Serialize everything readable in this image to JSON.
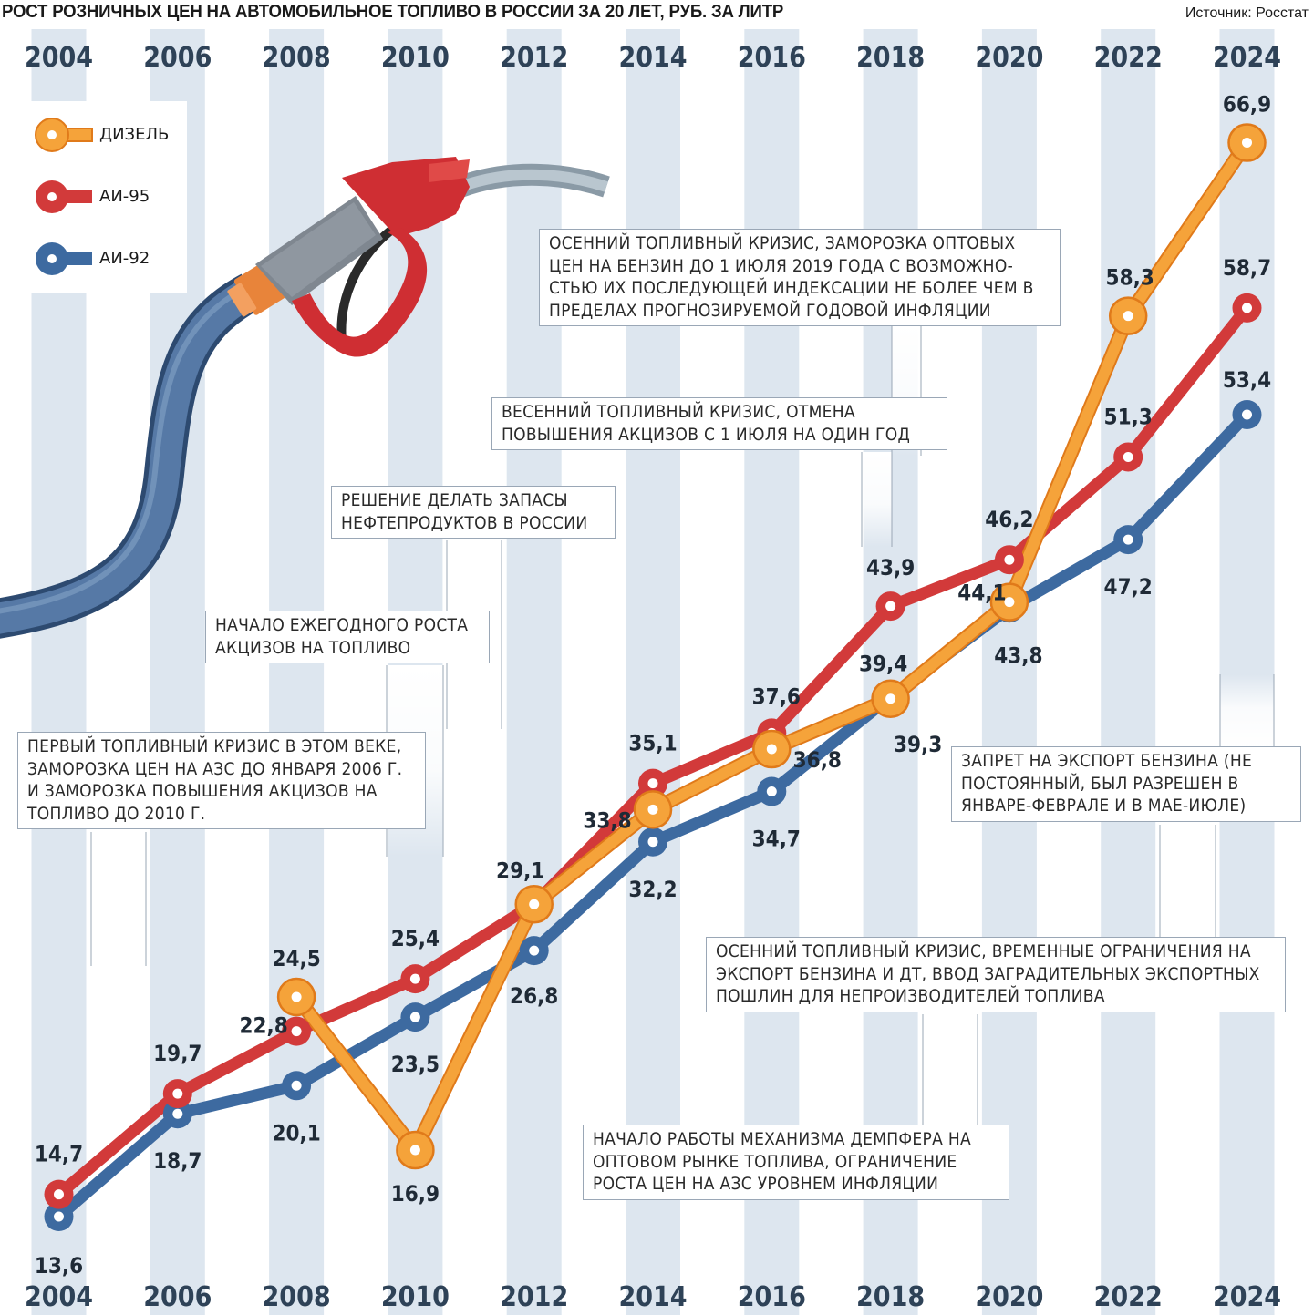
{
  "header": {
    "title": "РОСТ РОЗНИЧНЫХ ЦЕН НА АВТОМОБИЛЬНОЕ ТОПЛИВО В РОССИИ ЗА 20 ЛЕТ, РУБ. ЗА ЛИТР",
    "source": "Источник: Росстат"
  },
  "colors": {
    "diesel": "#f5a33a",
    "ai95": "#d23a3a",
    "ai92": "#3d6aa0",
    "stripe": "#dde6ef",
    "year_label": "#2e4257"
  },
  "legend": [
    {
      "label": "ДИЗЕЛЬ",
      "color": "diesel"
    },
    {
      "label": "АИ-95",
      "color": "ai95"
    },
    {
      "label": "АИ-92",
      "color": "ai92"
    }
  ],
  "annotations": [
    {
      "text": "ОСЕННИЙ ТОПЛИВНЫЙ КРИЗИС, ЗАМОРОЗКА ОПТОВЫХ ЦЕН НА БЕНЗИН ДО 1 ИЮЛЯ 2019 ГОДА С ВОЗМОЖНО-СТЬЮ ИХ ПОСЛЕДУЮЩЕЙ ИНДЕКСАЦИИ НЕ БОЛЕЕ ЧЕМ В ПРЕДЕЛАХ ПРОГНОЗИРУЕМОЙ ГОДОВОЙ ИНФЛЯЦИИ"
    },
    {
      "text": "ВЕСЕННИЙ ТОПЛИВНЫЙ КРИЗИС, ОТМЕНА ПОВЫШЕНИЯ АКЦИЗОВ С 1 ИЮЛЯ НА ОДИН ГОД"
    },
    {
      "text": "РЕШЕНИЕ ДЕЛАТЬ ЗАПАСЫ НЕФТЕПРОДУКТОВ В РОССИИ"
    },
    {
      "text": "НАЧАЛО ЕЖЕГОДНОГО РОСТА АКЦИЗОВ НА ТОПЛИВО"
    },
    {
      "text": "ПЕРВЫЙ ТОПЛИВНЫЙ КРИЗИС В ЭТОМ ВЕКЕ, ЗАМОРОЗКА ЦЕН НА АЗС ДО ЯНВАРЯ 2006 Г. И ЗАМОРОЗКА ПОВЫШЕНИЯ АКЦИЗОВ НА ТОПЛИВО ДО 2010 Г."
    },
    {
      "text": "ЗАПРЕТ НА ЭКСПОРТ БЕНЗИНА (НЕ ПОСТОЯННЫЙ, БЫЛ РАЗРЕШЕН В ЯНВАРЕ-ФЕВРАЛЕ И В МАЕ-ИЮЛЕ)"
    },
    {
      "text": "ОСЕННИЙ ТОПЛИВНЫЙ КРИЗИС, ВРЕМЕННЫЕ ОГРАНИЧЕНИЯ НА ЭКСПОРТ БЕНЗИНА И ДТ, ВВОД ЗАГРАДИТЕЛЬНЫХ ЭКСПОРТНЫХ ПОШЛИН ДЛЯ НЕПРОИЗВОДИТЕЛЕЙ ТОПЛИВА"
    },
    {
      "text": "НАЧАЛО РАБОТЫ МЕХАНИЗМА ДЕМПФЕРА НА ОПТОВОМ РЫНКЕ ТОПЛИВА, ОГРАНИЧЕНИЕ РОСТА ЦЕН НА АЗС УРОВНЕМ ИНФЛЯЦИИ"
    }
  ],
  "chart_data": {
    "type": "line",
    "title": "РОСТ РОЗНИЧНЫХ ЦЕН НА АВТОМОБИЛЬНОЕ ТОПЛИВО В РОССИИ ЗА 20 ЛЕТ, РУБ. ЗА ЛИТР",
    "x": [
      2004,
      2006,
      2008,
      2010,
      2012,
      2014,
      2016,
      2018,
      2020,
      2022,
      2024
    ],
    "x_labels": [
      "2004",
      "2006",
      "2008",
      "2010",
      "2012",
      "2014",
      "2016",
      "2018",
      "2020",
      "2022",
      "2024"
    ],
    "ylim": [
      10,
      70
    ],
    "grid": false,
    "legend_position": "top-left",
    "series": [
      {
        "name": "ДИЗЕЛЬ",
        "color": "#f5a33a",
        "values": [
          null,
          null,
          24.5,
          16.9,
          29.1,
          33.8,
          36.8,
          39.3,
          44.1,
          58.3,
          66.9
        ],
        "labels": [
          "",
          "",
          "24,5",
          "16,9",
          "29,1",
          "33,8",
          "36,8",
          "39,3",
          "44,1",
          "58,3",
          "66,9"
        ]
      },
      {
        "name": "АИ-95",
        "color": "#d23a3a",
        "values": [
          14.7,
          19.7,
          22.8,
          25.4,
          29.1,
          35.1,
          37.6,
          43.9,
          46.2,
          51.3,
          58.7
        ],
        "labels": [
          "14,7",
          "19,7",
          "22,8",
          "25,4",
          "",
          "35,1",
          "37,6",
          "43,9",
          "46,2",
          "51,3",
          "58,7"
        ]
      },
      {
        "name": "АИ-92",
        "color": "#3d6aa0",
        "values": [
          13.6,
          18.7,
          20.1,
          23.5,
          26.8,
          32.2,
          34.7,
          39.4,
          43.8,
          47.2,
          53.4
        ],
        "labels": [
          "13,6",
          "18,7",
          "20,1",
          "23,5",
          "26,8",
          "32,2",
          "34,7",
          "39,4",
          "43,8",
          "47,2",
          "53,4"
        ]
      }
    ]
  }
}
